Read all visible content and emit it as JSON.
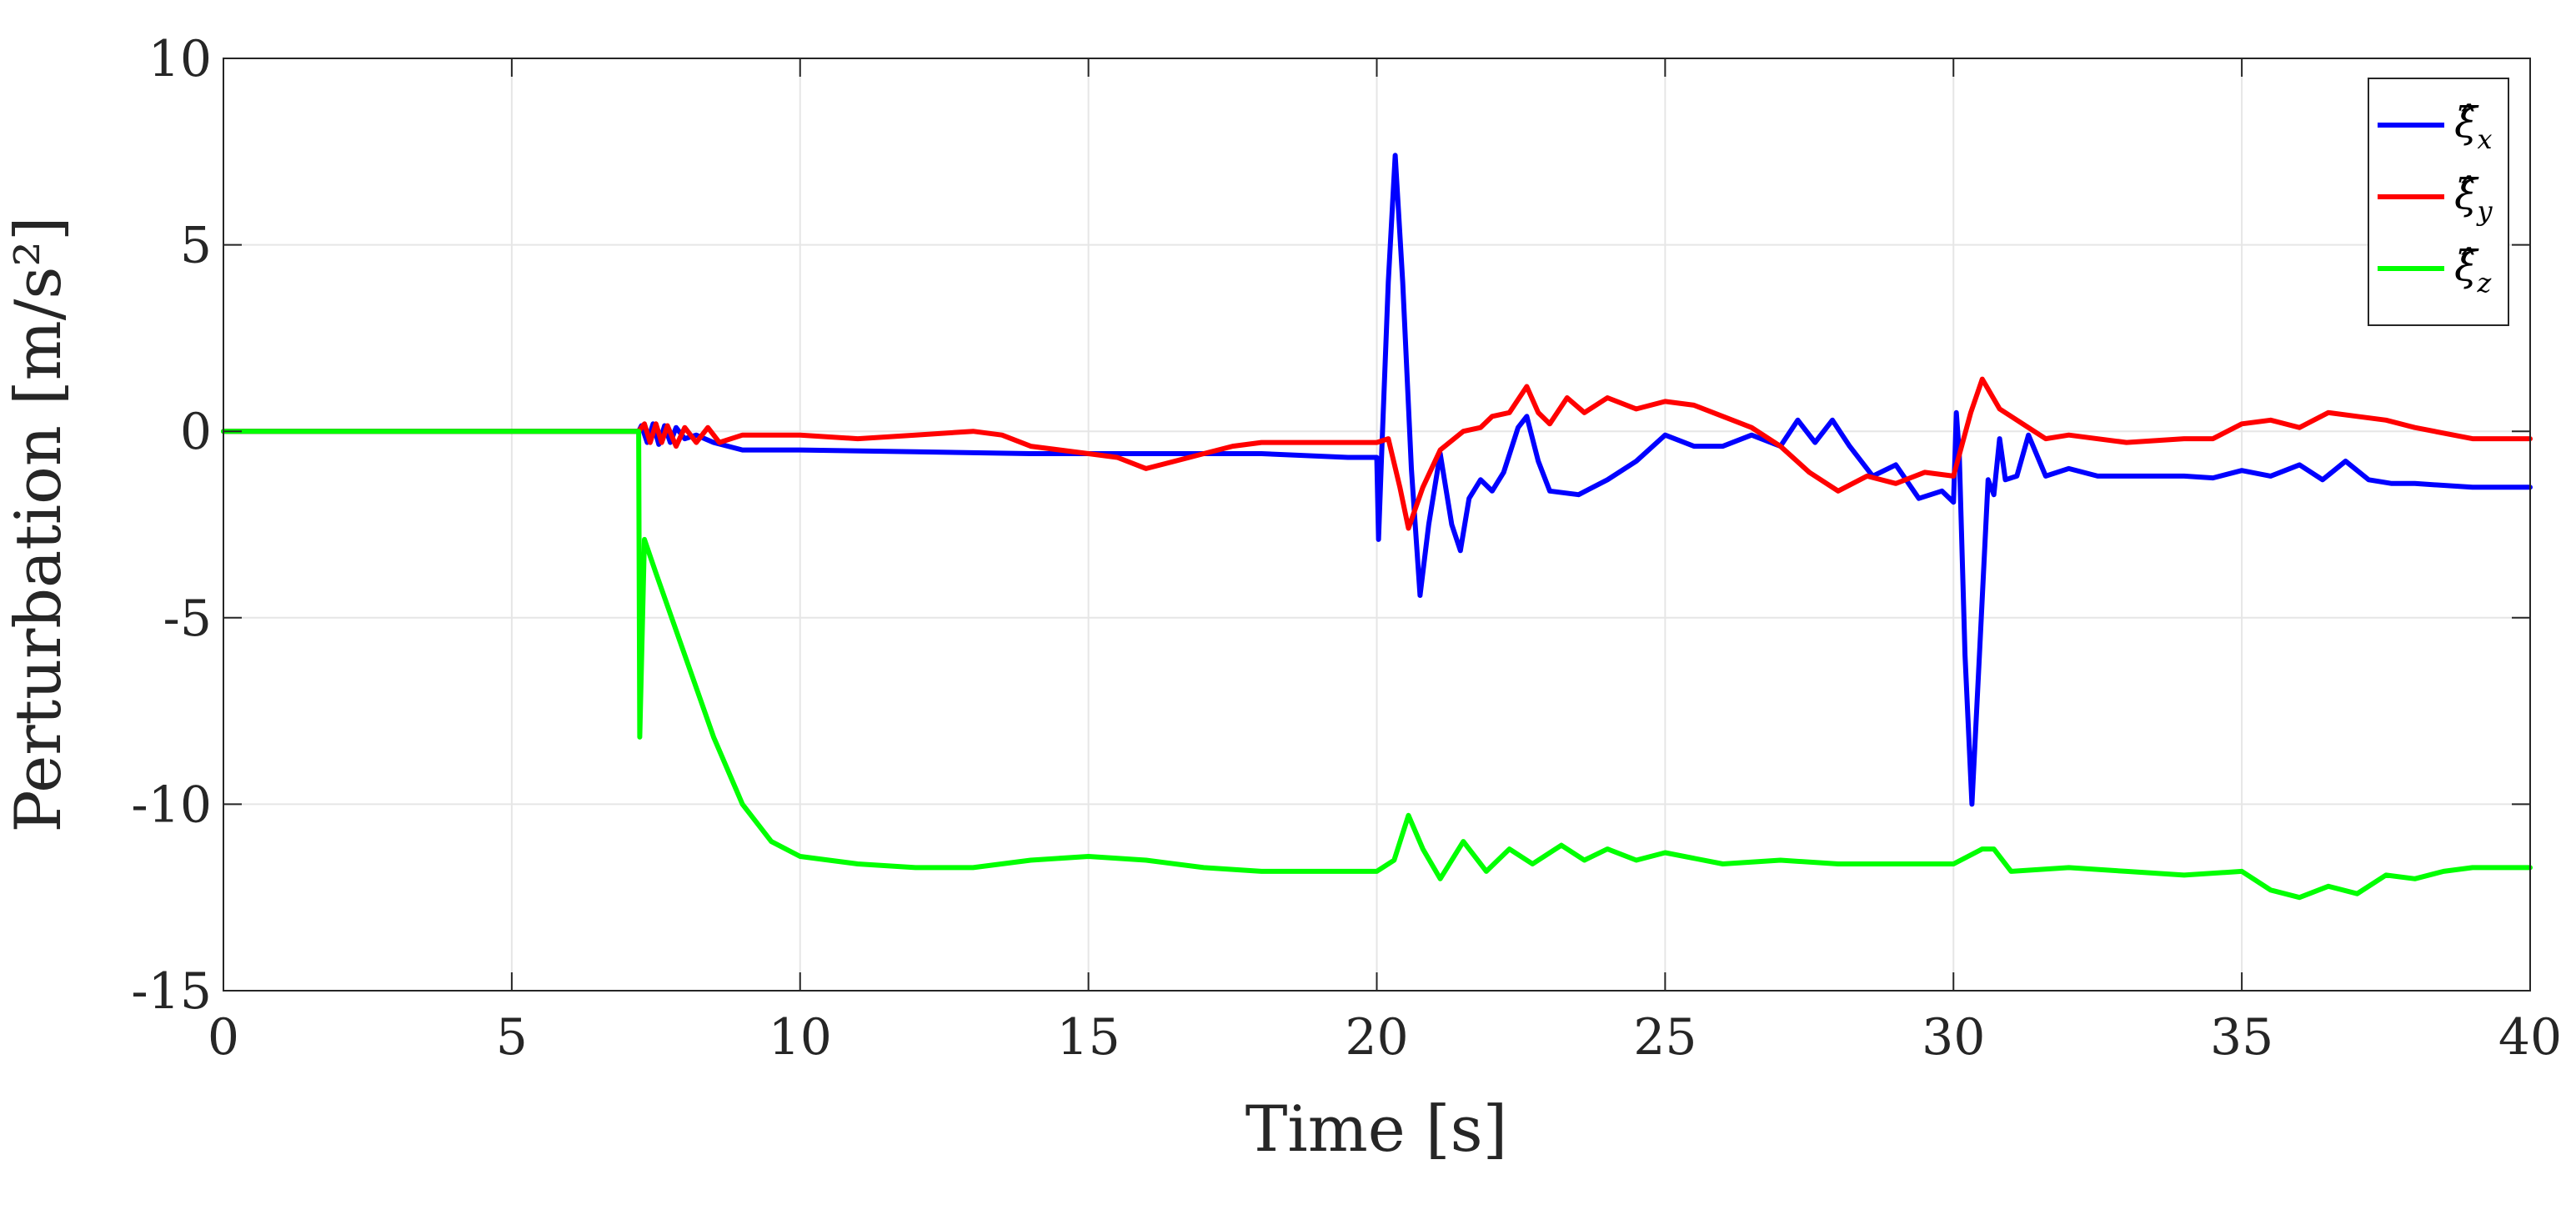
{
  "chart_data": {
    "type": "line",
    "title": "",
    "xlabel": "Time [s]",
    "ylabel": "Perturbation [m/s²]",
    "xlim": [
      0,
      40
    ],
    "ylim": [
      -15,
      10
    ],
    "xticks": [
      0,
      5,
      10,
      15,
      20,
      25,
      30,
      35,
      40
    ],
    "yticks": [
      -15,
      -10,
      -5,
      0,
      5,
      10
    ],
    "xtick_labels": [
      "0",
      "5",
      "10",
      "15",
      "20",
      "25",
      "30",
      "35",
      "40"
    ],
    "ytick_labels": [
      "-15",
      "-10",
      "-5",
      "0",
      "5",
      "10"
    ],
    "grid": true,
    "legend_position": "top-right",
    "series": [
      {
        "name": "ξ̂x",
        "symbol": "ξ̂",
        "subscript": "x",
        "color": "#0000ff",
        "points": [
          [
            0,
            0
          ],
          [
            7.2,
            0
          ],
          [
            7.25,
            0.15
          ],
          [
            7.35,
            -0.3
          ],
          [
            7.45,
            0.2
          ],
          [
            7.55,
            -0.35
          ],
          [
            7.65,
            0.15
          ],
          [
            7.75,
            -0.3
          ],
          [
            7.85,
            0.1
          ],
          [
            8,
            -0.2
          ],
          [
            8.2,
            -0.1
          ],
          [
            8.5,
            -0.3
          ],
          [
            9,
            -0.5
          ],
          [
            10,
            -0.5
          ],
          [
            12,
            -0.55
          ],
          [
            14,
            -0.6
          ],
          [
            16,
            -0.6
          ],
          [
            18,
            -0.6
          ],
          [
            19.5,
            -0.7
          ],
          [
            20,
            -0.7
          ],
          [
            20.03,
            -2.9
          ],
          [
            20.08,
            -0.8
          ],
          [
            20.2,
            4
          ],
          [
            20.32,
            7.4
          ],
          [
            20.45,
            4
          ],
          [
            20.6,
            -1
          ],
          [
            20.75,
            -4.4
          ],
          [
            20.9,
            -2.5
          ],
          [
            21.1,
            -0.6
          ],
          [
            21.3,
            -2.5
          ],
          [
            21.45,
            -3.2
          ],
          [
            21.6,
            -1.8
          ],
          [
            21.8,
            -1.3
          ],
          [
            22,
            -1.6
          ],
          [
            22.2,
            -1.1
          ],
          [
            22.45,
            0.1
          ],
          [
            22.6,
            0.4
          ],
          [
            22.8,
            -0.8
          ],
          [
            23,
            -1.6
          ],
          [
            23.5,
            -1.7
          ],
          [
            24,
            -1.3
          ],
          [
            24.5,
            -0.8
          ],
          [
            25,
            -0.1
          ],
          [
            25.5,
            -0.4
          ],
          [
            26,
            -0.4
          ],
          [
            26.5,
            -0.1
          ],
          [
            27,
            -0.4
          ],
          [
            27.3,
            0.3
          ],
          [
            27.6,
            -0.3
          ],
          [
            27.9,
            0.3
          ],
          [
            28.2,
            -0.4
          ],
          [
            28.6,
            -1.2
          ],
          [
            29,
            -0.9
          ],
          [
            29.4,
            -1.8
          ],
          [
            29.8,
            -1.6
          ],
          [
            30,
            -1.9
          ],
          [
            30.05,
            0.5
          ],
          [
            30.1,
            -0.6
          ],
          [
            30.2,
            -6
          ],
          [
            30.32,
            -10
          ],
          [
            30.45,
            -6
          ],
          [
            30.6,
            -1.3
          ],
          [
            30.7,
            -1.7
          ],
          [
            30.8,
            -0.2
          ],
          [
            30.9,
            -1.3
          ],
          [
            31.1,
            -1.2
          ],
          [
            31.3,
            -0.1
          ],
          [
            31.6,
            -1.2
          ],
          [
            32,
            -1
          ],
          [
            32.5,
            -1.2
          ],
          [
            33,
            -1.2
          ],
          [
            34,
            -1.2
          ],
          [
            34.5,
            -1.25
          ],
          [
            35,
            -1.05
          ],
          [
            35.5,
            -1.2
          ],
          [
            36,
            -0.9
          ],
          [
            36.4,
            -1.3
          ],
          [
            36.8,
            -0.8
          ],
          [
            37.2,
            -1.3
          ],
          [
            37.6,
            -1.4
          ],
          [
            38,
            -1.4
          ],
          [
            39,
            -1.5
          ],
          [
            40,
            -1.5
          ]
        ]
      },
      {
        "name": "ξ̂y",
        "symbol": "ξ̂",
        "subscript": "y",
        "color": "#ff0000",
        "points": [
          [
            0,
            0
          ],
          [
            7.2,
            0
          ],
          [
            7.3,
            0.2
          ],
          [
            7.4,
            -0.3
          ],
          [
            7.5,
            0.2
          ],
          [
            7.6,
            -0.3
          ],
          [
            7.7,
            0.15
          ],
          [
            7.85,
            -0.4
          ],
          [
            8,
            0.1
          ],
          [
            8.2,
            -0.3
          ],
          [
            8.4,
            0.1
          ],
          [
            8.6,
            -0.3
          ],
          [
            9,
            -0.1
          ],
          [
            10,
            -0.1
          ],
          [
            11,
            -0.2
          ],
          [
            12,
            -0.1
          ],
          [
            13,
            0
          ],
          [
            13.5,
            -0.1
          ],
          [
            14,
            -0.4
          ],
          [
            15,
            -0.6
          ],
          [
            15.5,
            -0.7
          ],
          [
            16,
            -1
          ],
          [
            16.5,
            -0.8
          ],
          [
            17,
            -0.6
          ],
          [
            17.5,
            -0.4
          ],
          [
            18,
            -0.3
          ],
          [
            19,
            -0.3
          ],
          [
            20,
            -0.3
          ],
          [
            20.2,
            -0.2
          ],
          [
            20.4,
            -1.5
          ],
          [
            20.55,
            -2.6
          ],
          [
            20.8,
            -1.5
          ],
          [
            21.1,
            -0.5
          ],
          [
            21.5,
            0
          ],
          [
            21.8,
            0.1
          ],
          [
            22,
            0.4
          ],
          [
            22.3,
            0.5
          ],
          [
            22.6,
            1.2
          ],
          [
            22.8,
            0.5
          ],
          [
            23,
            0.2
          ],
          [
            23.3,
            0.9
          ],
          [
            23.6,
            0.5
          ],
          [
            24,
            0.9
          ],
          [
            24.5,
            0.6
          ],
          [
            25,
            0.8
          ],
          [
            25.5,
            0.7
          ],
          [
            26,
            0.4
          ],
          [
            26.5,
            0.1
          ],
          [
            27,
            -0.4
          ],
          [
            27.5,
            -1.1
          ],
          [
            28,
            -1.6
          ],
          [
            28.5,
            -1.2
          ],
          [
            29,
            -1.4
          ],
          [
            29.5,
            -1.1
          ],
          [
            30,
            -1.2
          ],
          [
            30.3,
            0.5
          ],
          [
            30.5,
            1.4
          ],
          [
            30.8,
            0.6
          ],
          [
            31.2,
            0.2
          ],
          [
            31.6,
            -0.2
          ],
          [
            32,
            -0.1
          ],
          [
            33,
            -0.3
          ],
          [
            34,
            -0.2
          ],
          [
            34.5,
            -0.2
          ],
          [
            35,
            0.2
          ],
          [
            35.5,
            0.3
          ],
          [
            36,
            0.1
          ],
          [
            36.5,
            0.5
          ],
          [
            37,
            0.4
          ],
          [
            37.5,
            0.3
          ],
          [
            38,
            0.1
          ],
          [
            39,
            -0.2
          ],
          [
            40,
            -0.2
          ]
        ]
      },
      {
        "name": "ξ̂z",
        "symbol": "ξ̂",
        "subscript": "z",
        "color": "#00ff00",
        "points": [
          [
            0,
            0
          ],
          [
            7.2,
            0
          ],
          [
            7.22,
            -8.2
          ],
          [
            7.3,
            -2.9
          ],
          [
            7.5,
            -3.8
          ],
          [
            8,
            -6
          ],
          [
            8.5,
            -8.2
          ],
          [
            9,
            -10
          ],
          [
            9.5,
            -11
          ],
          [
            10,
            -11.4
          ],
          [
            11,
            -11.6
          ],
          [
            12,
            -11.7
          ],
          [
            13,
            -11.7
          ],
          [
            14,
            -11.5
          ],
          [
            15,
            -11.4
          ],
          [
            16,
            -11.5
          ],
          [
            17,
            -11.7
          ],
          [
            18,
            -11.8
          ],
          [
            19,
            -11.8
          ],
          [
            20,
            -11.8
          ],
          [
            20.3,
            -11.5
          ],
          [
            20.55,
            -10.3
          ],
          [
            20.8,
            -11.2
          ],
          [
            21.1,
            -12
          ],
          [
            21.5,
            -11
          ],
          [
            21.9,
            -11.8
          ],
          [
            22.3,
            -11.2
          ],
          [
            22.7,
            -11.6
          ],
          [
            23.2,
            -11.1
          ],
          [
            23.6,
            -11.5
          ],
          [
            24,
            -11.2
          ],
          [
            24.5,
            -11.5
          ],
          [
            25,
            -11.3
          ],
          [
            26,
            -11.6
          ],
          [
            27,
            -11.5
          ],
          [
            28,
            -11.6
          ],
          [
            29,
            -11.6
          ],
          [
            30,
            -11.6
          ],
          [
            30.5,
            -11.2
          ],
          [
            30.7,
            -11.2
          ],
          [
            31,
            -11.8
          ],
          [
            32,
            -11.7
          ],
          [
            33,
            -11.8
          ],
          [
            34,
            -11.9
          ],
          [
            35,
            -11.8
          ],
          [
            35.5,
            -12.3
          ],
          [
            36,
            -12.5
          ],
          [
            36.5,
            -12.2
          ],
          [
            37,
            -12.4
          ],
          [
            37.5,
            -11.9
          ],
          [
            38,
            -12
          ],
          [
            38.5,
            -11.8
          ],
          [
            39,
            -11.7
          ],
          [
            40,
            -11.7
          ]
        ]
      }
    ]
  }
}
